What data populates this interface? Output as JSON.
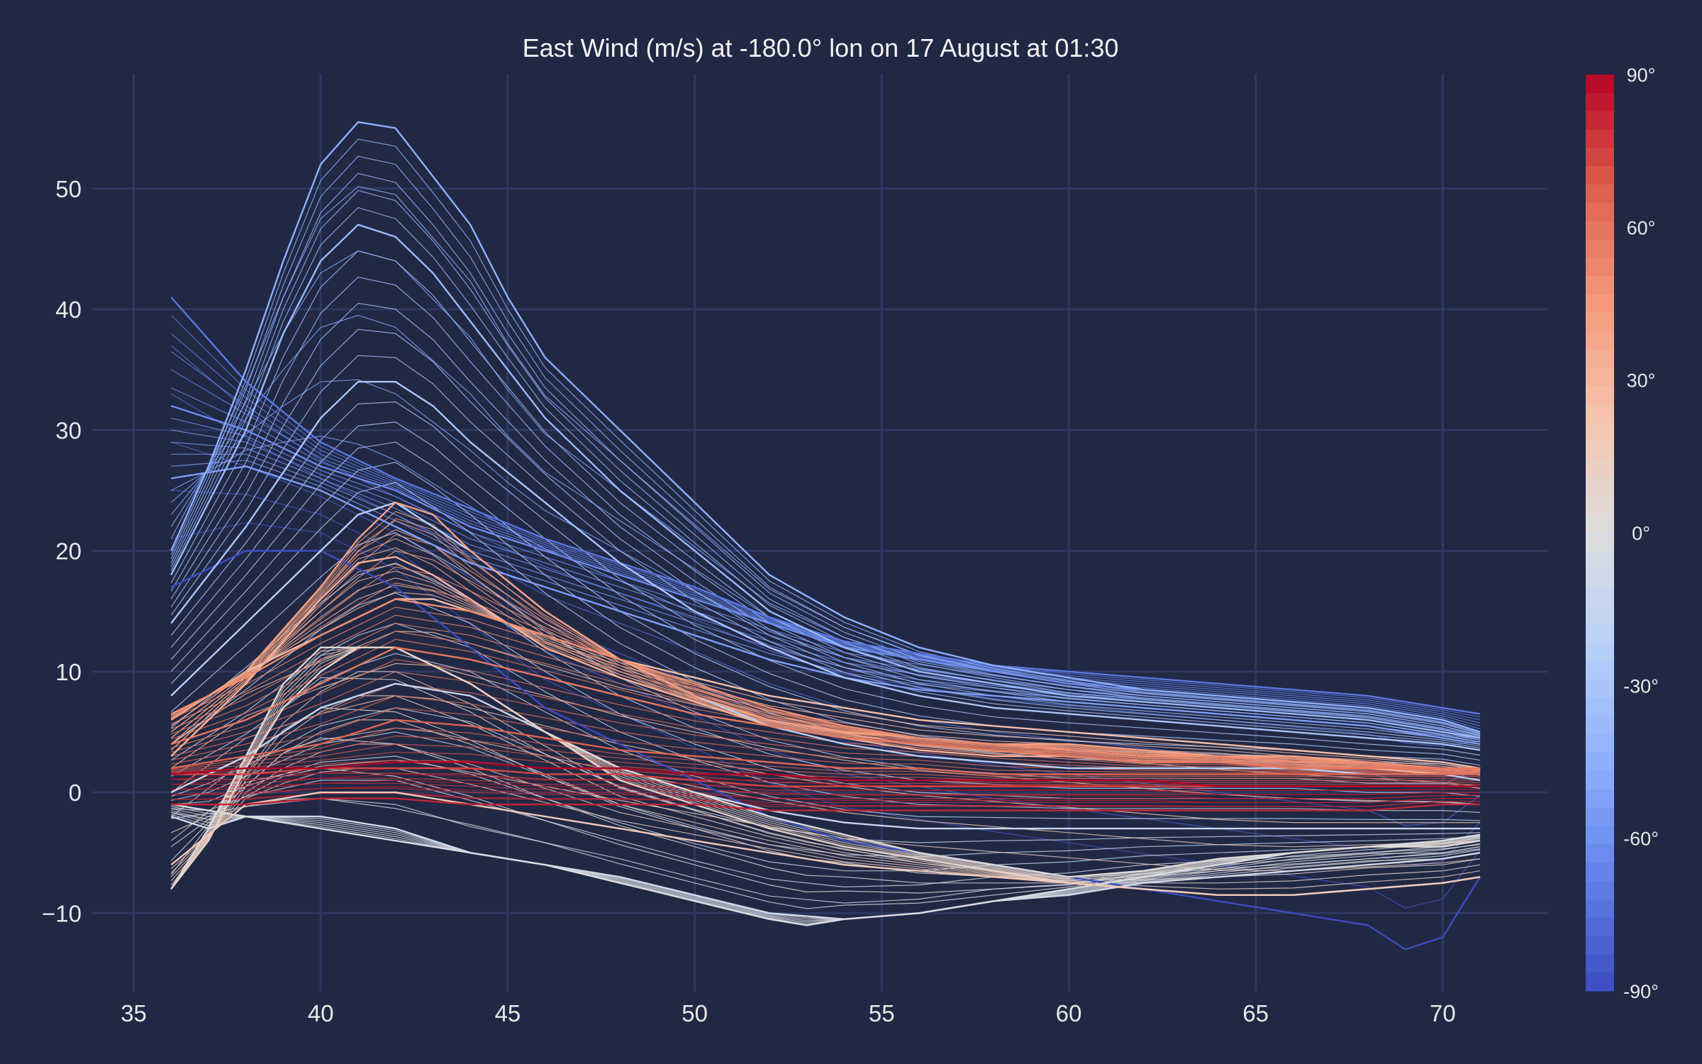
{
  "chart_data": {
    "type": "line",
    "title": "East Wind (m/s) at -180.0° lon on 17 August at 01:30",
    "xlabel": "",
    "ylabel": "",
    "xlim": [
      33.7,
      72.8
    ],
    "ylim": [
      -16.5,
      59.5
    ],
    "x_ticks": [
      35,
      40,
      45,
      50,
      55,
      60,
      65,
      70
    ],
    "y_ticks": [
      -10,
      0,
      10,
      20,
      30,
      40,
      50
    ],
    "y_tick_labels": [
      "−10",
      "0",
      "10",
      "20",
      "30",
      "40",
      "50"
    ],
    "x_range_of_lines": [
      36,
      71
    ],
    "grid": true,
    "background": "#212844",
    "grid_color": "#2d3960",
    "colorscale": "coolwarm",
    "colorbar": {
      "variable": "latitude",
      "min": -90,
      "max": 90,
      "steps": 50,
      "ticks": [
        {
          "value": 90,
          "label": "90°"
        },
        {
          "value": 60,
          "label": "60°"
        },
        {
          "value": 30,
          "label": "30°"
        },
        {
          "value": 0,
          "label": "0°"
        },
        {
          "value": -30,
          "label": "-30°"
        },
        {
          "value": -60,
          "label": "-60°"
        },
        {
          "value": -90,
          "label": "-90°"
        }
      ]
    },
    "series": [
      {
        "latitude": -90,
        "x": [
          36,
          38,
          40,
          42,
          44,
          46,
          48,
          50,
          52,
          54,
          56,
          58,
          60,
          62,
          64,
          66,
          68,
          69,
          70,
          71
        ],
        "y": [
          17,
          20,
          20,
          17,
          12,
          7,
          4,
          1,
          -2,
          -4,
          -5,
          -6,
          -7,
          -8,
          -9,
          -10,
          -11,
          -13,
          -12,
          -7
        ]
      },
      {
        "latitude": -72,
        "x": [
          36,
          38,
          40,
          42,
          44,
          46,
          48,
          50,
          52,
          54,
          56,
          58,
          60,
          62,
          64,
          66,
          68,
          70,
          71
        ],
        "y": [
          41,
          34,
          29,
          26,
          23.5,
          21,
          19,
          17,
          14.5,
          12.5,
          11.5,
          10.5,
          10,
          9.5,
          9,
          8.5,
          8,
          7,
          6.5
        ]
      },
      {
        "latitude": -63,
        "x": [
          36,
          38,
          40,
          42,
          44,
          46,
          48,
          50,
          52,
          54,
          56,
          58,
          60,
          62,
          64,
          66,
          68,
          70,
          71
        ],
        "y": [
          32,
          30,
          27,
          25,
          22,
          20,
          18,
          16,
          14,
          12,
          11,
          10,
          9,
          8.5,
          8,
          7.5,
          7,
          6,
          5
        ]
      },
      {
        "latitude": -54,
        "x": [
          36,
          38,
          40,
          42,
          44,
          46,
          48,
          50,
          52,
          54,
          56,
          58,
          60,
          62,
          64,
          66,
          68,
          70,
          71
        ],
        "y": [
          26,
          27,
          25,
          22,
          19,
          17,
          15,
          13,
          11,
          9.5,
          8.5,
          8,
          7.5,
          7,
          6.5,
          6,
          5.5,
          4.5,
          4
        ]
      },
      {
        "latitude": -45,
        "x": [
          36,
          37,
          38,
          39,
          40,
          41,
          42,
          43,
          44,
          45,
          46,
          47,
          48,
          50,
          52,
          54,
          56,
          58,
          60,
          62,
          64,
          66,
          68,
          70,
          71
        ],
        "y": [
          20,
          27,
          35,
          44,
          52,
          55.5,
          55,
          51,
          47,
          41,
          36,
          33,
          30,
          24,
          18,
          14.5,
          12,
          10.5,
          9.5,
          8.5,
          8,
          7.5,
          7,
          6,
          5
        ]
      },
      {
        "latitude": -38,
        "x": [
          36,
          38,
          39,
          40,
          41,
          42,
          43,
          44,
          45,
          46,
          48,
          50,
          52,
          54,
          56,
          58,
          60,
          62,
          64,
          66,
          68,
          70,
          71
        ],
        "y": [
          18,
          30,
          38,
          44,
          47,
          46,
          43,
          39,
          35,
          31,
          25,
          20,
          15,
          12,
          10,
          9,
          8,
          7.5,
          7,
          6.5,
          6,
          5,
          4.5
        ]
      },
      {
        "latitude": -30,
        "x": [
          36,
          38,
          40,
          41,
          42,
          43,
          44,
          46,
          48,
          50,
          52,
          54,
          56,
          58,
          60,
          62,
          64,
          66,
          68,
          70,
          71
        ],
        "y": [
          14,
          22,
          31,
          34,
          34,
          32,
          29,
          24,
          19,
          15,
          12,
          9.5,
          8,
          7,
          6.5,
          6,
          5.5,
          5,
          4.5,
          4,
          3.5
        ]
      },
      {
        "latitude": -22,
        "x": [
          36,
          38,
          40,
          41,
          42,
          43,
          44,
          46,
          48,
          50,
          52,
          54,
          56,
          58,
          60,
          62,
          64,
          66,
          68,
          70,
          71
        ],
        "y": [
          8,
          14,
          20,
          23,
          24,
          22,
          20,
          15,
          11,
          8,
          5.5,
          4,
          3,
          2.5,
          2,
          2,
          2,
          2,
          1.5,
          1.5,
          1
        ]
      },
      {
        "latitude": -14,
        "x": [
          36,
          38,
          40,
          42,
          44,
          46,
          48,
          50,
          52,
          54,
          56,
          58,
          60,
          62,
          64,
          66,
          68,
          70,
          71
        ],
        "y": [
          0,
          3,
          7,
          9,
          8,
          5,
          2,
          0,
          -1.5,
          -2.5,
          -3,
          -3,
          -3,
          -3,
          -3,
          -3,
          -3,
          -3,
          -3
        ]
      },
      {
        "latitude": -7,
        "x": [
          36,
          37,
          38,
          40,
          42,
          44,
          46,
          48,
          50,
          52,
          54,
          56,
          58,
          60,
          62,
          64,
          66,
          68,
          70,
          71
        ],
        "y": [
          -2,
          -3,
          -2,
          -2,
          -3,
          -5,
          -6,
          -7,
          -8.5,
          -10,
          -10.5,
          -10,
          -9,
          -8.5,
          -7.5,
          -7,
          -6.5,
          -6,
          -5.5,
          -5
        ]
      },
      {
        "latitude": -2,
        "x": [
          36,
          38,
          40,
          42,
          44,
          46,
          48,
          50,
          52,
          53,
          54,
          56,
          58,
          60,
          62,
          64,
          66,
          68,
          70,
          71
        ],
        "y": [
          -1,
          -2,
          -3,
          -4,
          -5,
          -6,
          -7.5,
          -9,
          -10.5,
          -11,
          -10.5,
          -10,
          -9,
          -8,
          -7,
          -6,
          -5,
          -4.5,
          -4,
          -3.5
        ]
      },
      {
        "latitude": 3,
        "x": [
          36,
          37,
          38,
          39,
          40,
          42,
          44,
          46,
          48,
          50,
          52,
          54,
          56,
          58,
          60,
          62,
          64,
          66,
          68,
          70,
          71
        ],
        "y": [
          -8,
          -3,
          3,
          9,
          12,
          12,
          9,
          5,
          2,
          0,
          -2,
          -3.5,
          -5,
          -6,
          -7,
          -6.5,
          -5.5,
          -5,
          -4.5,
          -4.5,
          -4
        ]
      },
      {
        "latitude": 10,
        "x": [
          36,
          37,
          38,
          39,
          40,
          41,
          42,
          44,
          46,
          48,
          50,
          52,
          54,
          56,
          58,
          60,
          62,
          64,
          66,
          68,
          70,
          71
        ],
        "y": [
          -8,
          -4,
          2,
          7,
          10,
          12,
          12,
          9,
          5,
          1,
          -1,
          -3,
          -4.5,
          -5.5,
          -6.5,
          -7.5,
          -8,
          -8.5,
          -8.5,
          -8,
          -7.5,
          -7
        ]
      },
      {
        "latitude": 18,
        "x": [
          36,
          38,
          40,
          42,
          44,
          46,
          48,
          50,
          52,
          54,
          56,
          58,
          60,
          62,
          64,
          66,
          68,
          70,
          71
        ],
        "y": [
          -6,
          -1,
          0,
          0,
          -1,
          -2,
          -3,
          -4,
          -5,
          -6,
          -6.5,
          -7,
          -7.5,
          -8,
          -8.5,
          -8.5,
          -8,
          -7.5,
          -7
        ]
      },
      {
        "latitude": 25,
        "x": [
          36,
          38,
          40,
          42,
          43,
          44,
          46,
          48,
          50,
          52,
          54,
          56,
          58,
          60,
          62,
          64,
          66,
          68,
          70,
          71
        ],
        "y": [
          6,
          10,
          13,
          16,
          16,
          15,
          13,
          11,
          9.5,
          8,
          7,
          6,
          5.5,
          5,
          4.5,
          4,
          3.5,
          3,
          2.5,
          2
        ]
      },
      {
        "latitude": 33,
        "x": [
          36,
          38,
          40,
          41,
          42,
          43,
          44,
          46,
          48,
          50,
          52,
          54,
          56,
          58,
          60,
          62,
          64,
          66,
          68,
          70,
          71
        ],
        "y": [
          3,
          9,
          16,
          19,
          19.5,
          18,
          16,
          12,
          9.5,
          7.5,
          5.5,
          4.5,
          3.5,
          3,
          3,
          2.5,
          2.5,
          2,
          2,
          1.5,
          1.5
        ]
      },
      {
        "latitude": 42,
        "x": [
          36,
          38,
          40,
          41,
          42,
          43,
          44,
          46,
          48,
          50,
          52,
          54,
          56,
          58,
          60,
          62,
          64,
          66,
          68,
          70,
          71
        ],
        "y": [
          6,
          10,
          17,
          21,
          24,
          23,
          20,
          15,
          11,
          8,
          6,
          5,
          4.5,
          4,
          4,
          3.5,
          3,
          3,
          2.5,
          2,
          2
        ]
      },
      {
        "latitude": 50,
        "x": [
          36,
          38,
          40,
          42,
          44,
          46,
          48,
          50,
          52,
          54,
          56,
          58,
          60,
          62,
          64,
          66,
          68,
          70,
          71
        ],
        "y": [
          6.5,
          9.5,
          13,
          16,
          15,
          13,
          11,
          9,
          7,
          5.5,
          4.5,
          4,
          3.5,
          3,
          3,
          2.5,
          2.5,
          2,
          2
        ]
      },
      {
        "latitude": 58,
        "x": [
          36,
          38,
          40,
          42,
          44,
          46,
          48,
          50,
          52,
          54,
          56,
          58,
          60,
          62,
          64,
          66,
          68,
          70,
          71
        ],
        "y": [
          4,
          6,
          9,
          12,
          11,
          9.5,
          8,
          6.5,
          5.5,
          4.5,
          4,
          3.5,
          3,
          2.5,
          2.5,
          2,
          2,
          2,
          2
        ]
      },
      {
        "latitude": 66,
        "x": [
          36,
          38,
          40,
          42,
          44,
          46,
          48,
          50,
          52,
          54,
          56,
          58,
          60,
          62,
          64,
          66,
          68,
          70,
          71
        ],
        "y": [
          2,
          3,
          4,
          6,
          5.5,
          4.5,
          3.5,
          3,
          2.5,
          2,
          2,
          1.5,
          1.5,
          1.5,
          1.5,
          1.5,
          1.5,
          1.5,
          1.5
        ]
      },
      {
        "latitude": 74,
        "x": [
          36,
          38,
          40,
          42,
          44,
          46,
          48,
          50,
          52,
          54,
          56,
          58,
          60,
          62,
          64,
          66,
          68,
          70,
          71
        ],
        "y": [
          1.5,
          1.5,
          2,
          2,
          2,
          1.5,
          1.5,
          1,
          0.5,
          0.5,
          0.5,
          0.5,
          0.5,
          0.5,
          0.5,
          0.5,
          0.5,
          0.5,
          0.5
        ]
      },
      {
        "latitude": 82,
        "x": [
          36,
          38,
          40,
          42,
          44,
          46,
          48,
          50,
          52,
          54,
          56,
          58,
          60,
          62,
          64,
          66,
          68,
          70,
          71
        ],
        "y": [
          -1,
          -1,
          -0.5,
          -0.5,
          -1,
          -1,
          -1,
          -1,
          -1.5,
          -1.5,
          -1.5,
          -1.5,
          -1.5,
          -1.5,
          -1.5,
          -1.5,
          -1.5,
          -1,
          -1
        ]
      },
      {
        "latitude": 90,
        "x": [
          36,
          38,
          40,
          42,
          44,
          46,
          48,
          50,
          52,
          54,
          56,
          58,
          60,
          62,
          64,
          66,
          68,
          70,
          71
        ],
        "y": [
          1.5,
          2,
          2,
          2.5,
          2.5,
          2,
          2,
          1.5,
          1.5,
          1,
          1,
          1,
          1,
          1,
          0.5,
          0.5,
          0.5,
          0.5,
          0.5
        ]
      }
    ]
  }
}
